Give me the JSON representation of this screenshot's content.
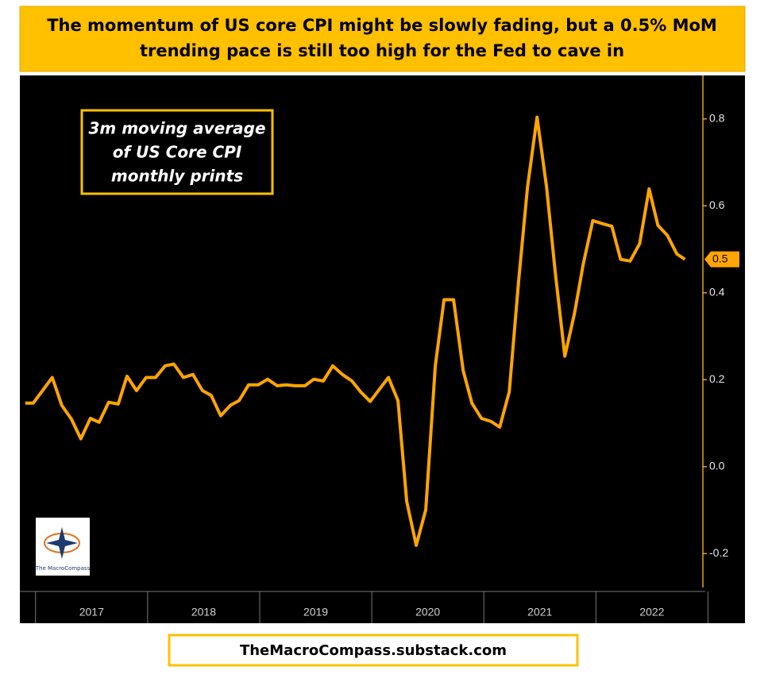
{
  "chart_data": {
    "type": "line",
    "title_lines": [
      "The momentum of US core CPI might be slowly fading, but a 0.5% MoM",
      "trending pace is still too high for the Fed to cave in"
    ],
    "annotation_lines": [
      "3m moving average",
      "of US Core CPI",
      "monthly prints"
    ],
    "logo_text": "The MacroCompass",
    "source": "TheMacroCompass.substack.com",
    "end_label": "0.5",
    "color": "#ffa500",
    "x": [
      2016.908,
      2016.979,
      2017.149,
      2017.234,
      2017.319,
      2017.404,
      2017.489,
      2017.567,
      2017.652,
      2017.738,
      2017.816,
      2017.901,
      2017.986,
      2018.071,
      2018.156,
      2018.234,
      2018.319,
      2018.404,
      2018.489,
      2018.567,
      2018.652,
      2018.738,
      2018.816,
      2018.901,
      2018.986,
      2019.071,
      2019.156,
      2019.234,
      2019.319,
      2019.404,
      2019.482,
      2019.567,
      2019.652,
      2019.738,
      2019.823,
      2019.901,
      2019.986,
      2020.071,
      2020.149,
      2020.234,
      2020.312,
      2020.397,
      2020.482,
      2020.567,
      2020.645,
      2020.73,
      2020.816,
      2020.894,
      2020.979,
      2021.064,
      2021.142,
      2021.227,
      2021.312,
      2021.39,
      2021.475,
      2021.56,
      2021.638,
      2021.723,
      2021.809,
      2021.887,
      2021.972,
      2022.057,
      2022.142,
      2022.22,
      2022.305,
      2022.39,
      2022.475,
      2022.553,
      2022.638,
      2022.723,
      2022.794
    ],
    "values": [
      0.146,
      0.146,
      0.205,
      0.141,
      0.11,
      0.064,
      0.111,
      0.102,
      0.148,
      0.144,
      0.208,
      0.175,
      0.205,
      0.205,
      0.232,
      0.236,
      0.205,
      0.212,
      0.175,
      0.164,
      0.117,
      0.141,
      0.152,
      0.188,
      0.188,
      0.201,
      0.186,
      0.188,
      0.186,
      0.186,
      0.201,
      0.197,
      0.232,
      0.212,
      0.197,
      0.172,
      0.15,
      0.179,
      0.205,
      0.152,
      -0.08,
      -0.181,
      -0.099,
      0.232,
      0.384,
      0.384,
      0.221,
      0.146,
      0.111,
      0.104,
      0.091,
      0.172,
      0.431,
      0.643,
      0.804,
      0.643,
      0.446,
      0.254,
      0.353,
      0.466,
      0.566,
      0.559,
      0.553,
      0.477,
      0.473,
      0.513,
      0.639,
      0.555,
      0.532,
      0.489,
      0.477
    ],
    "xlim": [
      2016.86,
      2023.33
    ],
    "xticks": [
      {
        "value": 2017.5,
        "label": "2017"
      },
      {
        "value": 2018.5,
        "label": "2018"
      },
      {
        "value": 2019.5,
        "label": "2019"
      },
      {
        "value": 2020.5,
        "label": "2020"
      },
      {
        "value": 2021.5,
        "label": "2021"
      },
      {
        "value": 2022.5,
        "label": "2022"
      }
    ],
    "ylim": [
      -0.278,
      0.9
    ],
    "yticks": [
      -0.2,
      {
        "value": 0,
        "label": "0.0"
      },
      0.2,
      0.4,
      0.6,
      0.8
    ]
  }
}
